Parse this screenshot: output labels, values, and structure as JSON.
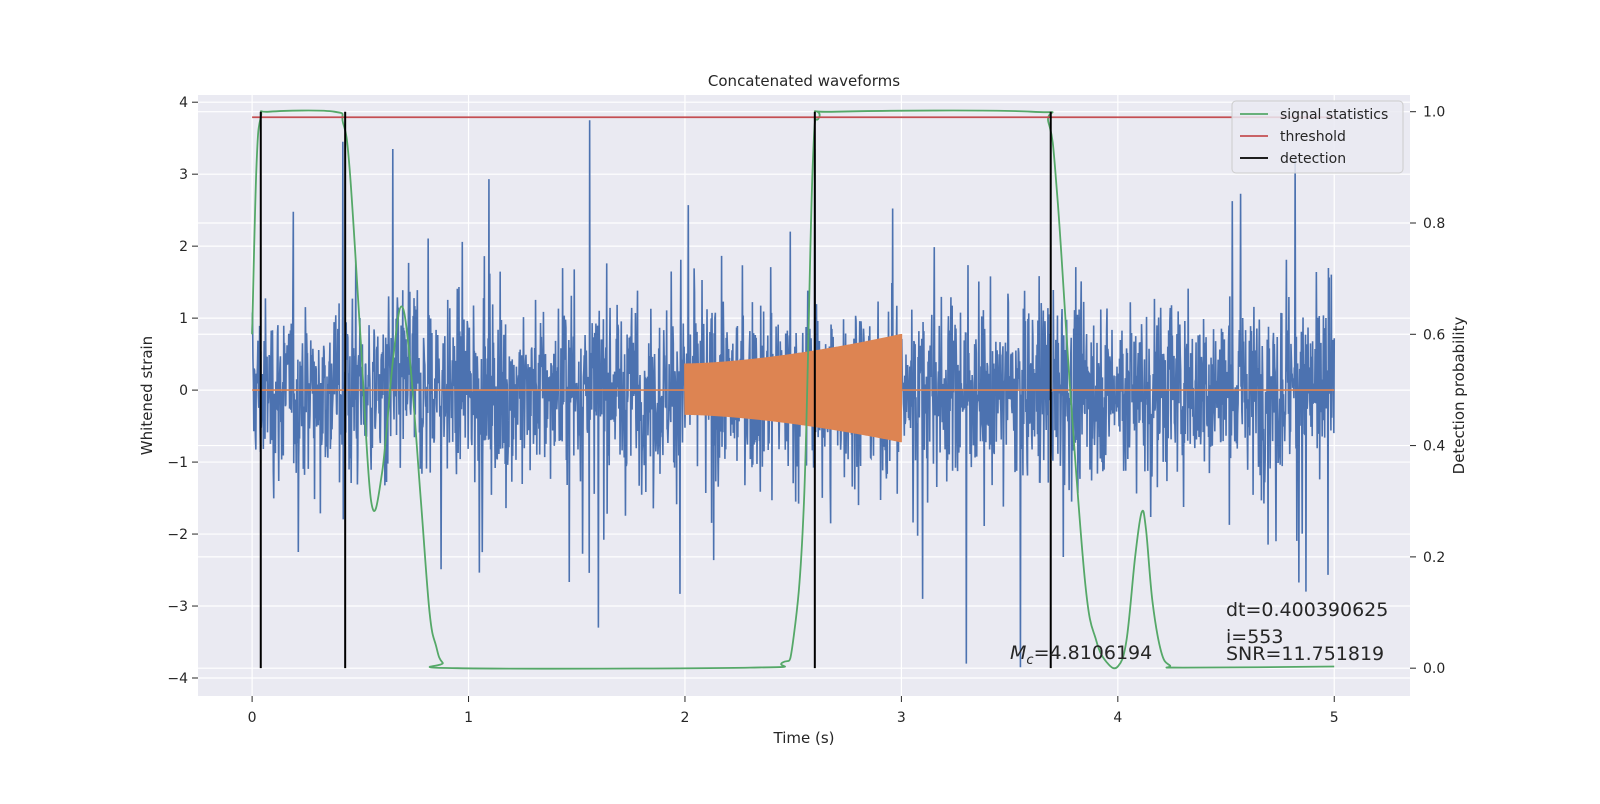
{
  "chart_data": {
    "type": "line",
    "title": "Concatenated waveforms",
    "xlabel": "Time (s)",
    "ylabel": "Whitened strain",
    "ylabel_right": "Detection probability",
    "xlim": [
      -0.25,
      5.35
    ],
    "ylim": [
      -4.25,
      4.1
    ],
    "ylim_right": [
      -0.05,
      1.03
    ],
    "x_ticks": [
      0,
      1,
      2,
      3,
      4,
      5
    ],
    "y_ticks": [
      -4,
      -3,
      -2,
      -1,
      0,
      1,
      2,
      3,
      4
    ],
    "y_ticks_right": [
      0.0,
      0.2,
      0.4,
      0.6,
      0.8,
      1.0
    ],
    "x_tick_labels": [
      "0",
      "1",
      "2",
      "3",
      "4",
      "5"
    ],
    "y_tick_labels": [
      "−4",
      "−3",
      "−2",
      "−1",
      "0",
      "1",
      "2",
      "3",
      "4"
    ],
    "y_tick_labels_right": [
      "0.0",
      "0.2",
      "0.4",
      "0.6",
      "0.8",
      "1.0"
    ],
    "grid": true,
    "legend_position": "top-right",
    "legend": [
      "signal statistics",
      "threshold",
      "detection"
    ],
    "colors": {
      "strain": "#4c72b0",
      "template": "#dd8452",
      "signal_statistics": "#55a868",
      "threshold": "#c44e52",
      "detection": "#000000",
      "background": "#eaeaf2",
      "grid": "#ffffff"
    },
    "series": [
      {
        "role": "whitened strain noise (unlabeled)",
        "axis": "left",
        "x_range": [
          0,
          5
        ],
        "typical_envelope": [
          -2.0,
          2.4
        ],
        "peaks": [
          {
            "x": 1.56,
            "y": 3.75
          },
          {
            "x": 0.42,
            "y": 3.45
          },
          {
            "x": 0.65,
            "y": 3.35
          },
          {
            "x": 2.6,
            "y": 3.35
          },
          {
            "x": 4.82,
            "y": 3.25
          },
          {
            "x": 1.6,
            "y": -3.3
          },
          {
            "x": 3.3,
            "y": -3.8
          },
          {
            "x": 3.55,
            "y": -3.85
          },
          {
            "x": 4.87,
            "y": -2.8
          }
        ]
      },
      {
        "role": "injected chirp template (unlabeled)",
        "axis": "left",
        "x_range": [
          2.0,
          3.0
        ],
        "amplitude_start": 0.37,
        "amplitude_end": 0.78,
        "baseline": 0.0
      },
      {
        "name": "signal statistics",
        "axis": "right",
        "x": [
          0.0,
          0.02,
          0.04,
          0.08,
          0.38,
          0.42,
          0.45,
          0.5,
          0.55,
          0.6,
          0.65,
          0.69,
          0.73,
          0.78,
          0.82,
          0.85,
          0.88,
          0.95,
          2.3,
          2.45,
          2.5,
          2.55,
          2.59,
          2.62,
          2.7,
          3.6,
          3.68,
          3.72,
          3.78,
          3.85,
          3.9,
          3.95,
          4.0,
          4.04,
          4.08,
          4.11,
          4.13,
          4.16,
          4.2,
          4.24,
          4.3,
          5.0
        ],
        "values": [
          0.6,
          0.9,
          0.99,
          1.0,
          1.0,
          0.98,
          0.9,
          0.6,
          0.3,
          0.35,
          0.55,
          0.65,
          0.55,
          0.3,
          0.1,
          0.04,
          0.01,
          0.0,
          0.001,
          0.01,
          0.05,
          0.3,
          0.9,
          0.99,
          1.0,
          1.0,
          0.98,
          0.85,
          0.5,
          0.15,
          0.05,
          0.01,
          0.003,
          0.05,
          0.2,
          0.28,
          0.25,
          0.12,
          0.03,
          0.005,
          0.001,
          0.003
        ]
      },
      {
        "name": "threshold",
        "axis": "right",
        "x": [
          0,
          5
        ],
        "values": [
          0.99,
          0.99
        ]
      },
      {
        "name": "detection",
        "axis": "right",
        "type": "vertical_lines",
        "x": [
          0.04,
          0.43,
          2.6,
          3.69
        ],
        "from": 0.0,
        "to": 1.0
      }
    ],
    "annotations": {
      "mc_symbol": "M",
      "mc_subscript": "c",
      "mc_value": "=4.8106194",
      "dt": "dt=0.400390625",
      "i": " i=553",
      "snr": "SNR=11.751819"
    }
  }
}
